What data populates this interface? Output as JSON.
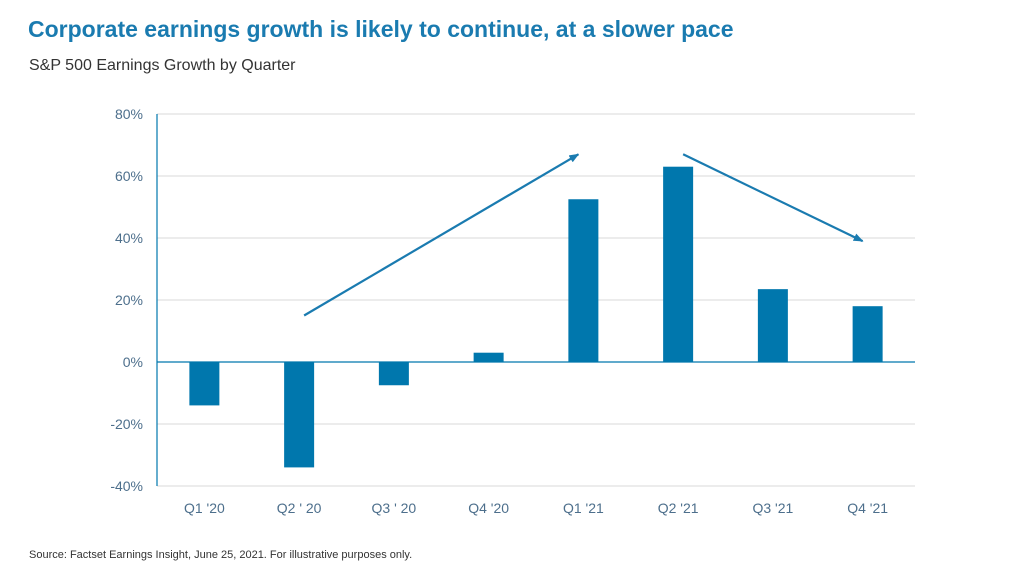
{
  "title": "Corporate earnings growth is likely to continue, at a slower pace",
  "subtitle": "S&P 500 Earnings Growth by Quarter",
  "source": "Source: Factset Earnings Insight, June 25, 2021. For illustrative purposes only.",
  "colors": {
    "title": "#1a7bb0",
    "bar": "#0077ad",
    "arrow": "#1a7bb0",
    "grid": "#d9d9d9",
    "tick_text": "#4d6f8c"
  },
  "chart_data": {
    "type": "bar",
    "title": "",
    "xlabel": "",
    "ylabel": "",
    "categories": [
      "Q1 '20",
      "Q2 ' 20",
      "Q3 ' 20",
      "Q4 '20",
      "Q1 '21",
      "Q2 '21",
      "Q3 '21",
      "Q4 '21"
    ],
    "values": [
      -14,
      -34,
      -7.5,
      3,
      52.5,
      63,
      23.5,
      18
    ],
    "ylim": [
      -40,
      80
    ],
    "yticks": [
      -40,
      -20,
      0,
      20,
      40,
      60,
      80
    ],
    "ytick_labels": [
      "-40%",
      "-20%",
      "0%",
      "20%",
      "40%",
      "60%",
      "80%"
    ],
    "grid": true,
    "annotations": [
      {
        "type": "arrow",
        "from": {
          "x": "Q2 ' 20",
          "y": 15
        },
        "to": {
          "x": "Q1 '21",
          "y": 67
        }
      },
      {
        "type": "arrow",
        "from": {
          "x": "Q2 '21",
          "y": 67
        },
        "to": {
          "x": "Q4 '21",
          "y": 39
        }
      }
    ]
  }
}
